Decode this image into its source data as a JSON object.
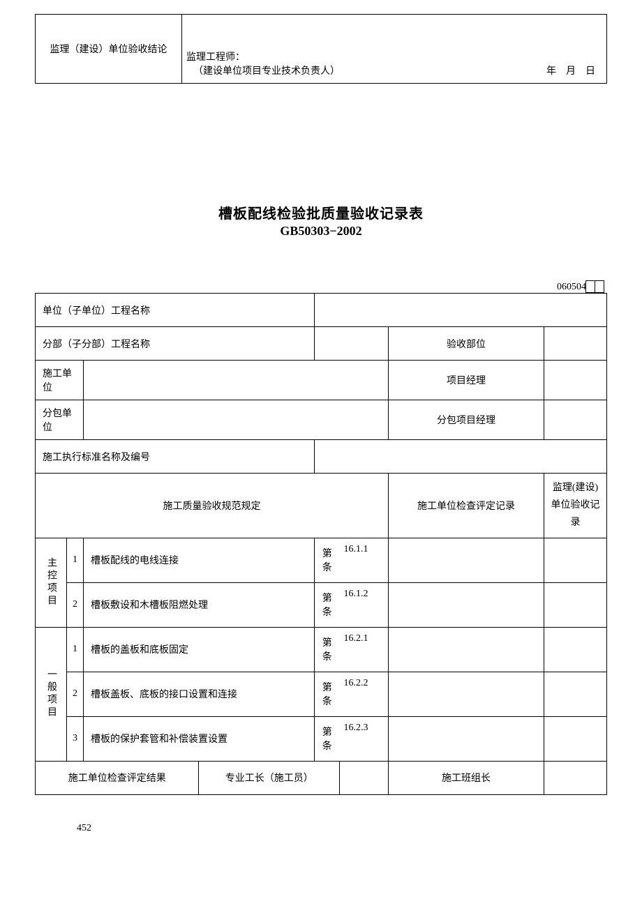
{
  "top_table": {
    "label": "监理（建设）单位验收结论",
    "line1": "监理工程师：",
    "line2": "（建设单位项目专业技术负责人）",
    "date": "年　月　日"
  },
  "title": {
    "main": "槽板配线检验批质量验收记录表",
    "sub": "GB50303−2002"
  },
  "form_code": "060504",
  "header_rows": {
    "unit_name_label": "单位（子单位）工程名称",
    "subunit_label": "分部（子分部）工程名称",
    "accept_dept_label": "验收部位",
    "construct_unit_label": "施工单位",
    "proj_mgr_label": "项目经理",
    "subcontract_label": "分包单位",
    "sub_proj_mgr_label": "分包项目经理",
    "std_label": "施工执行标准名称及编号"
  },
  "col_headers": {
    "spec": "施工质量验收规范规定",
    "unit_record": "施工单位检查评定记录",
    "supervise_record": "监理(建设)单位验收记录"
  },
  "sections": {
    "main_label": "主控项目",
    "general_label": "一般项目"
  },
  "items": {
    "m1": {
      "idx": "1",
      "desc": "槽板配线的电线连接",
      "clause_word": "第条",
      "clause_num": "16.1.1"
    },
    "m2": {
      "idx": "2",
      "desc": "槽板敷设和木槽板阻燃处理",
      "clause_word": "第条",
      "clause_num": "16.1.2"
    },
    "g1": {
      "idx": "1",
      "desc": "槽板的盖板和底板固定",
      "clause_word": "第条",
      "clause_num": "16.2.1"
    },
    "g2": {
      "idx": "2",
      "desc": "槽板盖板、底板的接口设置和连接",
      "clause_word": "第条",
      "clause_num": "16.2.2"
    },
    "g3": {
      "idx": "3",
      "desc": "槽板的保护套管和补偿装置设置",
      "clause_word": "第条",
      "clause_num": "16.2.3"
    }
  },
  "footer_row": {
    "result_label": "施工单位检查评定结果",
    "foreman_label": "专业工长（施工员）",
    "team_leader_label": "施工班组长"
  },
  "page_number": "452"
}
